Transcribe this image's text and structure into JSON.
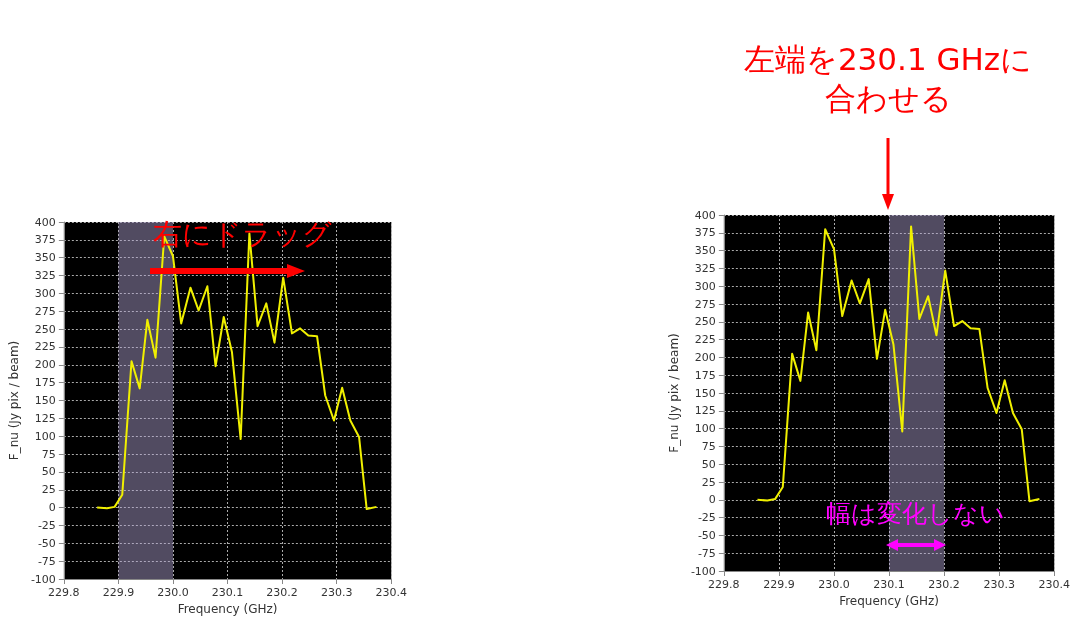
{
  "chart_data": [
    {
      "type": "line",
      "xlabel": "Frequency (GHz)",
      "ylabel": "F_nu (Jy pix / beam)",
      "x": [
        229.861,
        229.879,
        229.893,
        229.907,
        229.924,
        229.939,
        229.953,
        229.968,
        229.984,
        230.0,
        230.015,
        230.032,
        230.047,
        230.063,
        230.078,
        230.093,
        230.108,
        230.124,
        230.14,
        230.155,
        230.171,
        230.186,
        230.202,
        230.218,
        230.233,
        230.248,
        230.264,
        230.279,
        230.295,
        230.31,
        230.325,
        230.341,
        230.355,
        230.373
      ],
      "series": [
        {
          "color": "#f0f000",
          "values": [
            0,
            -1,
            1,
            18,
            205,
            167,
            263,
            210,
            380,
            352,
            258,
            308,
            276,
            310,
            198,
            267,
            218,
            96,
            384,
            254,
            286,
            231,
            322,
            244,
            251,
            241,
            240,
            157,
            122,
            168,
            122,
            99,
            -2,
            1
          ]
        }
      ],
      "xlim": [
        229.8,
        230.4
      ],
      "xticks": [
        229.8,
        229.9,
        {
          "value": 230,
          "label": "230.0"
        },
        230.1,
        230.2,
        230.3,
        230.4
      ],
      "ylim": [
        -100,
        400
      ],
      "yticks": [
        -100,
        -75,
        -50,
        -25,
        0,
        25,
        50,
        75,
        100,
        125,
        150,
        175,
        200,
        225,
        250,
        275,
        300,
        325,
        350,
        375,
        400
      ],
      "grid": true,
      "marker": "none",
      "line_style": "solid",
      "bands": [
        {
          "axis": "x",
          "from": 229.9,
          "to": 230.0,
          "color": "#b4a7d6"
        }
      ],
      "annotations": [
        "右にドラッグ"
      ]
    },
    {
      "type": "line",
      "xlabel": "Frequency (GHz)",
      "ylabel": "F_nu (Jy pix / beam)",
      "x": [
        229.861,
        229.879,
        229.893,
        229.907,
        229.924,
        229.939,
        229.953,
        229.968,
        229.984,
        230.0,
        230.015,
        230.032,
        230.047,
        230.063,
        230.078,
        230.093,
        230.108,
        230.124,
        230.14,
        230.155,
        230.171,
        230.186,
        230.202,
        230.218,
        230.233,
        230.248,
        230.264,
        230.279,
        230.295,
        230.31,
        230.325,
        230.341,
        230.355,
        230.373
      ],
      "series": [
        {
          "color": "#f0f000",
          "values": [
            0,
            -1,
            1,
            18,
            205,
            167,
            263,
            210,
            380,
            352,
            258,
            308,
            276,
            310,
            198,
            267,
            218,
            96,
            384,
            254,
            286,
            231,
            322,
            244,
            251,
            241,
            240,
            157,
            122,
            168,
            122,
            99,
            -2,
            1
          ]
        }
      ],
      "xlim": [
        229.8,
        230.4
      ],
      "xticks": [
        229.8,
        229.9,
        {
          "value": 230,
          "label": "230.0"
        },
        230.1,
        230.2,
        230.3,
        230.4
      ],
      "ylim": [
        -100,
        400
      ],
      "yticks": [
        -100,
        -75,
        -50,
        -25,
        0,
        25,
        50,
        75,
        100,
        125,
        150,
        175,
        200,
        225,
        250,
        275,
        300,
        325,
        350,
        375,
        400
      ],
      "grid": true,
      "marker": "none",
      "line_style": "solid",
      "bands": [
        {
          "axis": "x",
          "from": 230.1,
          "to": 230.2,
          "color": "#b4a7d6"
        }
      ],
      "annotations": [
        "左端を230.1 GHzに合わせる",
        "幅は変化しない"
      ]
    }
  ]
}
